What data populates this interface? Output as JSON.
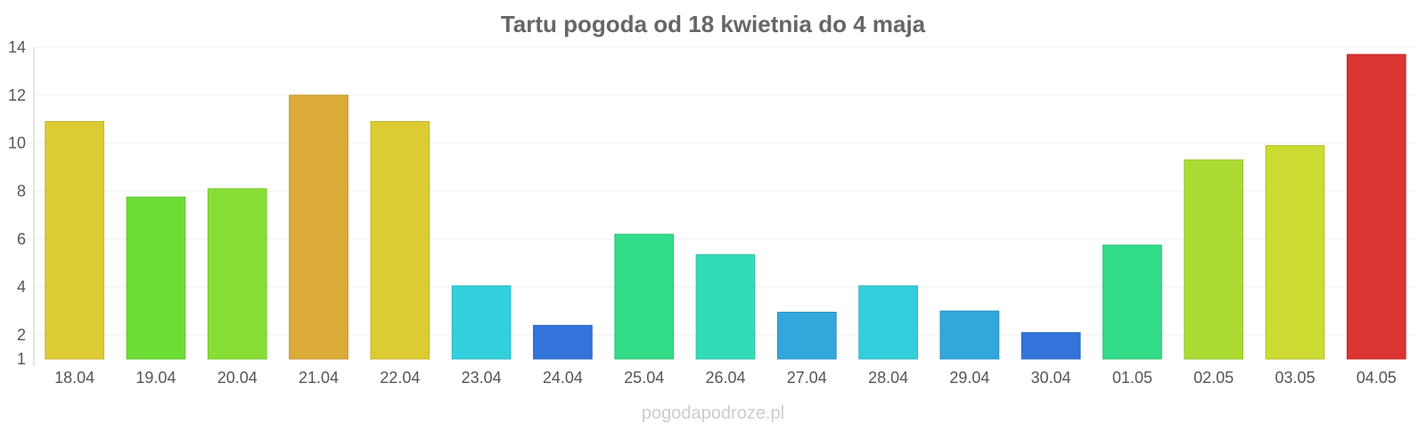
{
  "chart_data": {
    "type": "bar",
    "title": "Tartu pogoda od 18 kwietnia do 4 maja",
    "xlabel": "",
    "ylabel": "",
    "ylim": [
      1,
      14
    ],
    "yticks": [
      1,
      2,
      4,
      6,
      8,
      10,
      12,
      14
    ],
    "grid": true,
    "categories": [
      "18.04",
      "19.04",
      "20.04",
      "21.04",
      "22.04",
      "23.04",
      "24.04",
      "25.04",
      "26.04",
      "27.04",
      "28.04",
      "29.04",
      "30.04",
      "01.05",
      "02.05",
      "03.05",
      "04.05"
    ],
    "values": [
      10.9,
      7.75,
      8.1,
      12.0,
      10.9,
      4.05,
      2.4,
      6.2,
      5.35,
      2.95,
      4.05,
      3.0,
      2.1,
      5.75,
      9.3,
      9.9,
      13.7
    ],
    "colors": [
      "#dccb33",
      "#6cde36",
      "#89de36",
      "#dcaa36",
      "#dccb33",
      "#33cfdc",
      "#3374dc",
      "#33dc89",
      "#33dcb9",
      "#33a7dc",
      "#33cfdc",
      "#33a7dc",
      "#3374dc",
      "#33dc89",
      "#abdc33",
      "#ccdc33",
      "#dc3333"
    ]
  },
  "watermark": "pogodapodroze.pl"
}
